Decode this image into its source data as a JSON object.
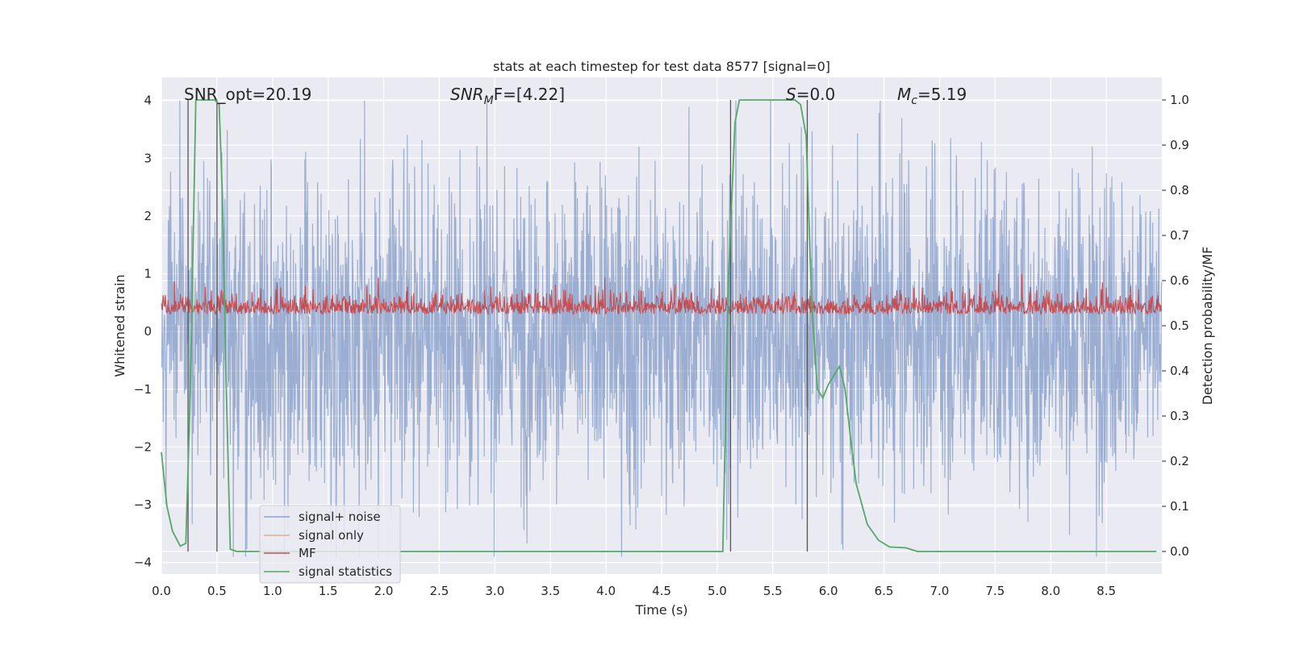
{
  "chart_data": {
    "type": "line",
    "title": "stats at each timestep for test data 8577 [signal=0]",
    "xlabel": "Time (s)",
    "ylabel": "Whitened strain",
    "ylabel_right": "Detection probability/MF",
    "xlim": [
      0.0,
      9.0
    ],
    "ylim": [
      -4.2,
      4.4
    ],
    "ylim_right": [
      -0.05,
      1.05
    ],
    "x_ticks": [
      "0.0",
      "0.5",
      "1.0",
      "1.5",
      "2.0",
      "2.5",
      "3.0",
      "3.5",
      "4.0",
      "4.5",
      "5.0",
      "5.5",
      "6.0",
      "6.5",
      "7.0",
      "7.5",
      "8.0",
      "8.5"
    ],
    "y_ticks": [
      "−4",
      "−3",
      "−2",
      "−1",
      "0",
      "1",
      "2",
      "3",
      "4"
    ],
    "y_ticks_right": [
      "0.0",
      "0.1",
      "0.2",
      "0.3",
      "0.4",
      "0.5",
      "0.6",
      "0.7",
      "0.8",
      "0.9",
      "1.0"
    ],
    "annotations": {
      "snr_opt": "SNR_opt=20.19",
      "snr_mf_base": "SNR",
      "snr_mf_sub": "M",
      "snr_mf_rest": "F=[4.22]",
      "s_label": "S",
      "s_value": "=0.0",
      "mc_label": "M",
      "mc_sub": "c",
      "mc_value": "=5.19"
    },
    "legend": {
      "position": "lower-left",
      "items": [
        "signal+ noise",
        "signal only",
        "MF",
        "signal statistics"
      ]
    },
    "vertical_markers_s": [
      0.24,
      0.5,
      5.12,
      5.81
    ],
    "series": [
      {
        "name": "signal statistics",
        "axis": "right",
        "color": "#55a868",
        "x": [
          0.0,
          0.05,
          0.1,
          0.17,
          0.22,
          0.26,
          0.31,
          0.36,
          0.42,
          0.48,
          0.52,
          0.55,
          0.58,
          0.62,
          0.68,
          0.8,
          1.0,
          1.5,
          2.0,
          3.0,
          4.0,
          5.0,
          5.05,
          5.1,
          5.16,
          5.2,
          5.4,
          5.6,
          5.7,
          5.75,
          5.8,
          5.85,
          5.9,
          5.95,
          6.0,
          6.05,
          6.1,
          6.15,
          6.2,
          6.25,
          6.35,
          6.45,
          6.55,
          6.7,
          6.8,
          7.0,
          8.0,
          8.95
        ],
        "values": [
          0.22,
          0.1,
          0.045,
          0.012,
          0.018,
          0.35,
          1.0,
          1.0,
          1.0,
          1.0,
          0.99,
          0.78,
          0.4,
          0.005,
          0.0,
          0.0,
          0.0,
          0.0,
          0.0,
          0.0,
          0.0,
          0.0,
          0.0,
          0.6,
          0.95,
          1.0,
          1.0,
          1.0,
          1.0,
          0.99,
          0.92,
          0.55,
          0.36,
          0.34,
          0.37,
          0.39,
          0.41,
          0.36,
          0.25,
          0.15,
          0.06,
          0.025,
          0.01,
          0.008,
          0.0,
          0.0,
          0.0,
          0.0
        ]
      },
      {
        "name": "signal+ noise",
        "axis": "left",
        "color": "#4c72b0",
        "description_range": [
          -3.9,
          4.0
        ]
      },
      {
        "name": "MF",
        "axis": "left",
        "color": "#c44e52",
        "description_range": [
          0.0,
          1.0
        ]
      },
      {
        "name": "signal only",
        "axis": "left",
        "color": "#dd8452"
      }
    ]
  }
}
